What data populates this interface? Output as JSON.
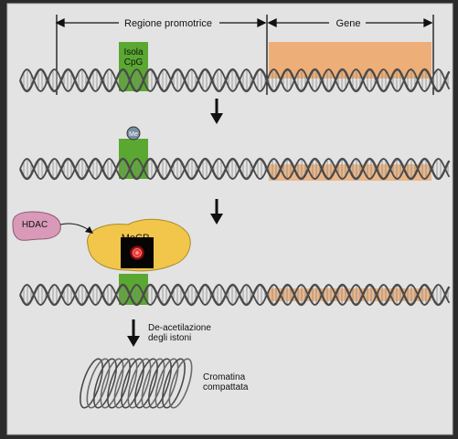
{
  "labels": {
    "promoter_region": "Regione promotrice",
    "gene": "Gene",
    "cpg_island_line1": "Isola",
    "cpg_island_line2": "CpG",
    "methyl": "Me",
    "hdac": "HDAC",
    "mecp": "MeCP",
    "deacetylation_line1": "De-acetilazione",
    "deacetylation_line2": "degli istoni",
    "chromatin_line1": "Cromatina",
    "chromatin_line2": "compattata"
  },
  "colors": {
    "background": "#e3e3e3",
    "dna_strand": "#4a4a4a",
    "gene_region": "#eda76a",
    "cpg_island": "#5aa832",
    "mecp_protein": "#f2c64a",
    "hdac_protein": "#d89ab8",
    "arrow": "#111111"
  },
  "icons": {
    "record_overlay": "record-button-icon"
  }
}
